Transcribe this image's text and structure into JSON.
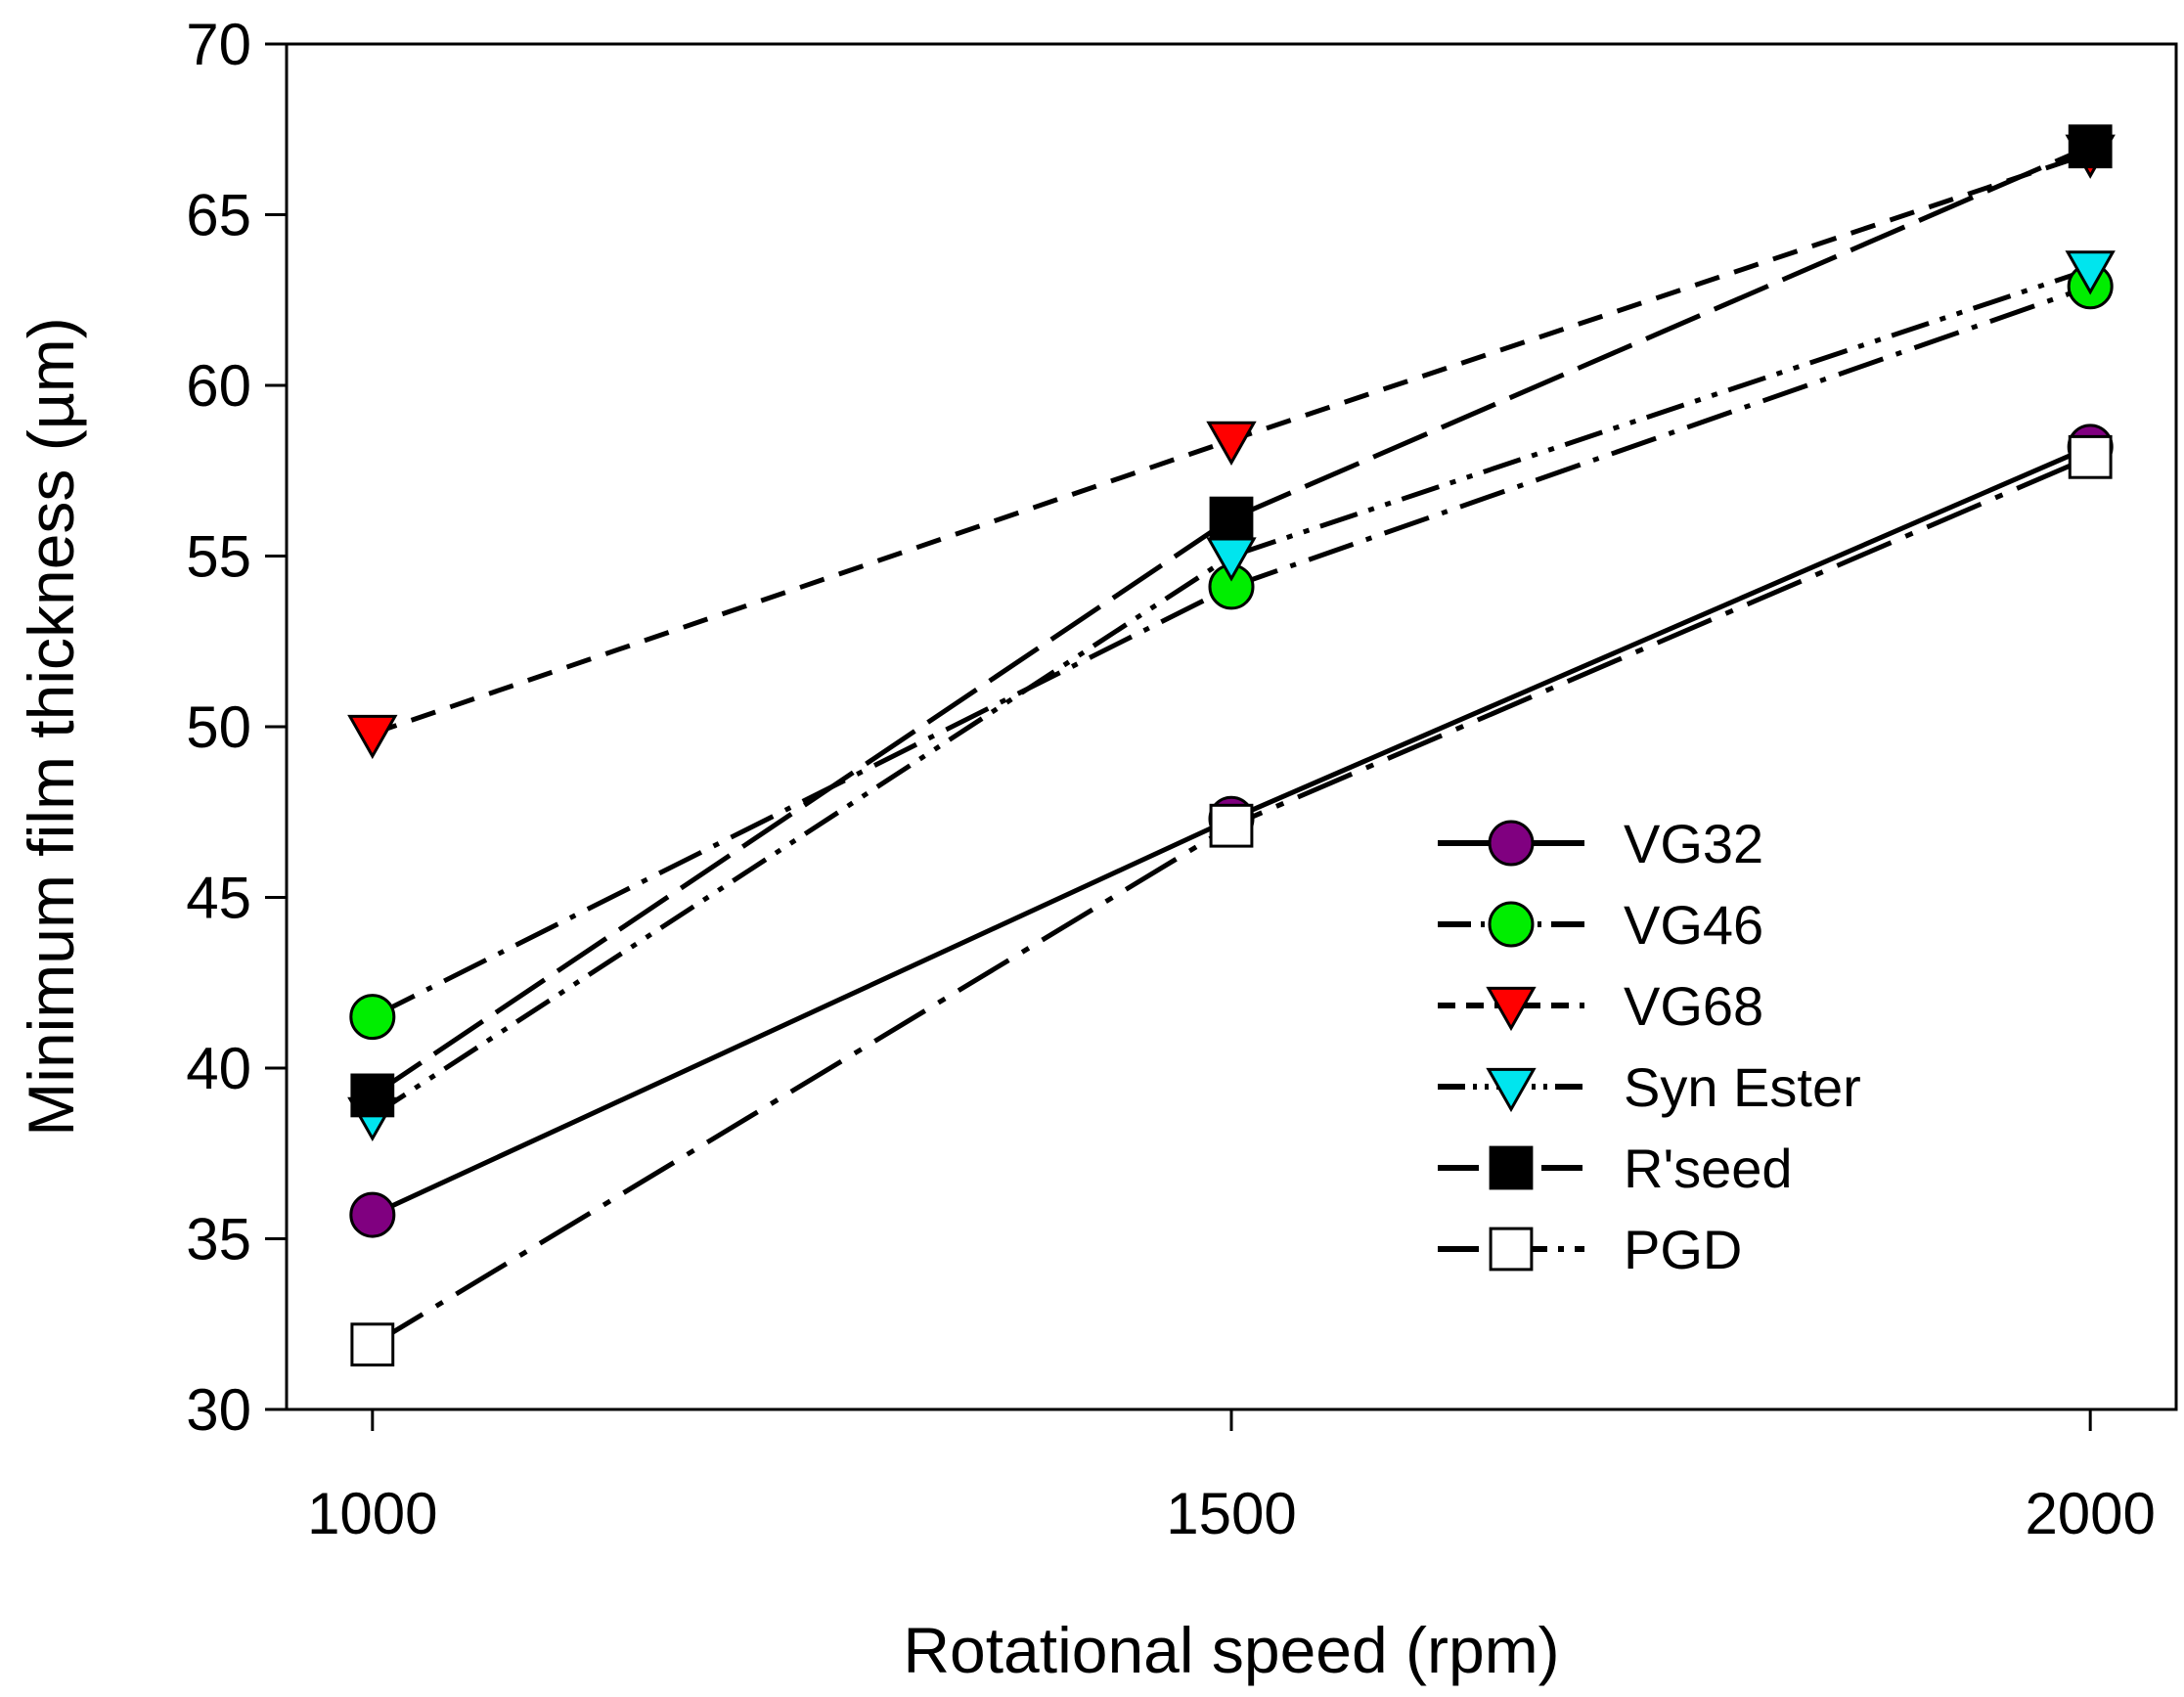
{
  "chart_data": {
    "type": "line",
    "title": "",
    "xlabel": "Rotational speed (rpm)",
    "ylabel": "Minimum film thickness (µm)",
    "x": [
      1000,
      1500,
      2000
    ],
    "xticks": [
      "1000",
      "1500",
      "2000"
    ],
    "xlim": [
      950,
      2050
    ],
    "ylim": [
      30,
      70
    ],
    "yticks": [
      "30",
      "35",
      "40",
      "45",
      "50",
      "55",
      "60",
      "65",
      "70"
    ],
    "grid": false,
    "legend_position": "center-right",
    "series": [
      {
        "name": "VG32",
        "values": [
          35.7,
          47.3,
          58.2
        ],
        "marker": "circle",
        "marker_color": "#800080",
        "line": "solid"
      },
      {
        "name": "VG46",
        "values": [
          41.5,
          54.1,
          62.9
        ],
        "marker": "circle",
        "marker_color": "#00ee00",
        "line": "dash-dot"
      },
      {
        "name": "VG68",
        "values": [
          49.8,
          58.4,
          66.8
        ],
        "marker": "triangle-down",
        "marker_color": "#ff0000",
        "line": "dash"
      },
      {
        "name": "Syn Ester",
        "values": [
          38.6,
          55.0,
          63.4
        ],
        "marker": "triangle-down",
        "marker_color": "#00e5ee",
        "line": "dash-dot-dot"
      },
      {
        "name": "R'seed",
        "values": [
          39.2,
          56.1,
          67.0
        ],
        "marker": "square",
        "marker_color": "#000000",
        "line": "long-dash"
      },
      {
        "name": "PGD",
        "values": [
          31.9,
          47.1,
          57.9
        ],
        "marker": "square",
        "marker_color": "#ffffff",
        "line": "dash-dot-long"
      }
    ]
  }
}
